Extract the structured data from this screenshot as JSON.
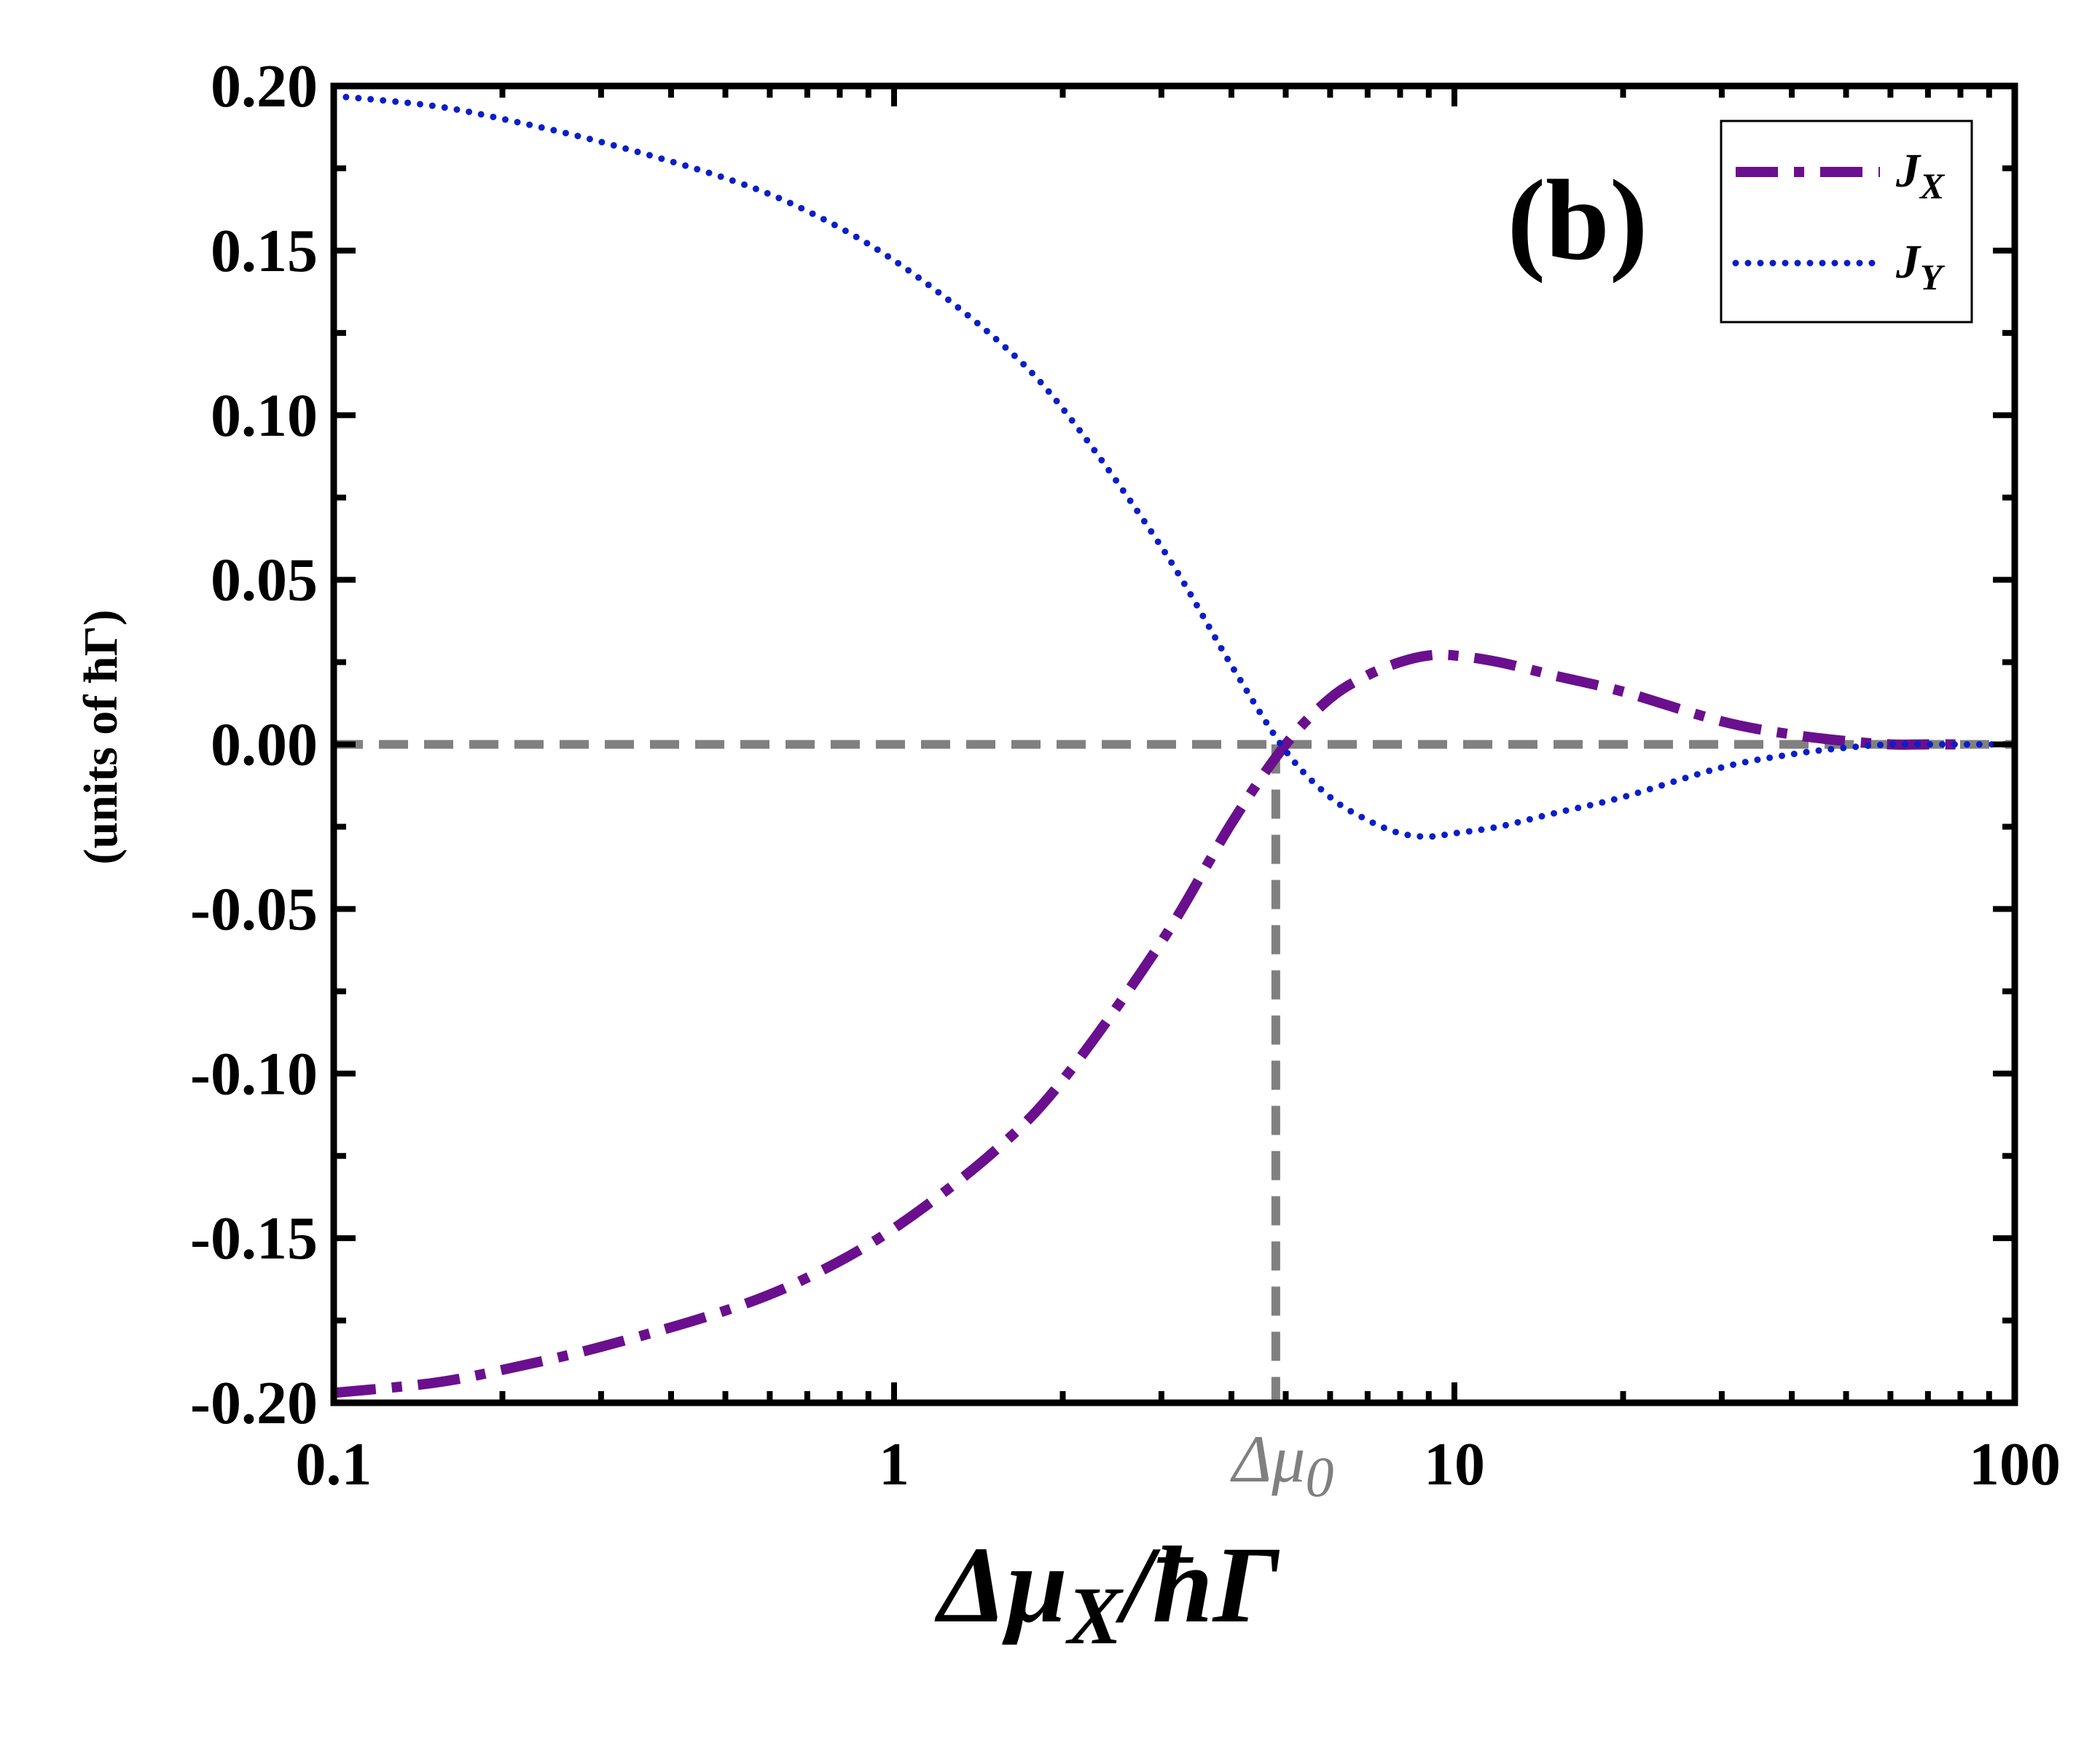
{
  "chart_data": {
    "type": "line",
    "panel_label": "(b)",
    "xscale": "log",
    "xlim": [
      0.1,
      100
    ],
    "ylim": [
      -0.2,
      0.2
    ],
    "x_ticks": [
      0.1,
      1,
      10,
      100
    ],
    "x_tick_labels": [
      "0.1",
      "1",
      "10",
      "100"
    ],
    "y_ticks": [
      -0.2,
      -0.15,
      -0.1,
      -0.05,
      0.0,
      0.05,
      0.1,
      0.15,
      0.2
    ],
    "y_tick_labels": [
      "-0.20",
      "-0.15",
      "-0.10",
      "-0.05",
      "0.00",
      "0.05",
      "0.10",
      "0.15",
      "0.20"
    ],
    "xlabel": {
      "base": "Δμ",
      "sub": "X",
      "suffix": "/ħΓ"
    },
    "ylabel": "(units of ħΓ)",
    "legend_position": "top-right",
    "series": [
      {
        "name": "J_X",
        "label_main": "J",
        "label_sub": "X",
        "color": "#6a0f8e",
        "style": "dash-dot",
        "x": [
          0.1,
          0.15,
          0.2,
          0.3,
          0.5,
          0.7,
          1,
          1.5,
          2,
          3,
          4,
          5,
          6,
          7,
          8,
          9,
          10,
          12,
          15,
          20,
          30,
          40,
          50,
          60,
          70,
          80
        ],
        "y": [
          -0.197,
          -0.194,
          -0.19,
          -0.183,
          -0.172,
          -0.162,
          -0.147,
          -0.124,
          -0.102,
          -0.06,
          -0.024,
          0.0,
          0.014,
          0.021,
          0.025,
          0.027,
          0.027,
          0.025,
          0.021,
          0.016,
          0.007,
          0.003,
          0.001,
          0.0,
          0.0,
          0.0
        ]
      },
      {
        "name": "J_Y",
        "label_main": "J",
        "label_sub": "Y",
        "color": "#0a1ec8",
        "style": "dotted",
        "x": [
          0.1,
          0.15,
          0.2,
          0.3,
          0.5,
          0.7,
          1,
          1.5,
          2,
          3,
          4,
          5,
          6,
          7,
          8,
          9,
          10,
          12,
          15,
          20,
          30,
          40,
          50,
          60,
          70,
          80,
          100
        ],
        "y": [
          0.197,
          0.194,
          0.19,
          0.183,
          0.172,
          0.162,
          0.147,
          0.124,
          0.102,
          0.06,
          0.024,
          -0.002,
          -0.016,
          -0.023,
          -0.027,
          -0.028,
          -0.027,
          -0.025,
          -0.021,
          -0.016,
          -0.007,
          -0.003,
          -0.001,
          0.0,
          0.0,
          0.0,
          0.0
        ]
      }
    ],
    "reference_lines": {
      "horizontal_y": 0.0,
      "vertical_x": 4.8,
      "color": "#808080",
      "marker_label_base": "Δμ",
      "marker_label_sub": "0"
    }
  }
}
